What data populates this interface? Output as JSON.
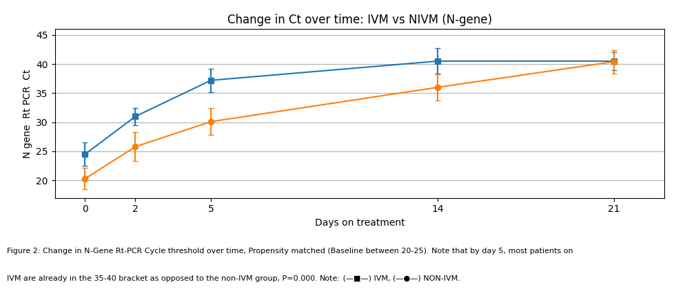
{
  "chart_data": {
    "type": "line",
    "title": "Change in Ct over time: IVM vs NIVM (N-gene)",
    "x_label": "Days on treatment",
    "y_label": "N gene  Rt PCR  Ct",
    "x": [
      0,
      2,
      5,
      14,
      21
    ],
    "series": [
      {
        "values": [
          24.5,
          31.0,
          37.2,
          40.5,
          40.5
        ],
        "errors": [
          2.0,
          1.5,
          2.0,
          2.2,
          1.5
        ],
        "marker": "square",
        "line_style": "solid"
      },
      {
        "values": [
          20.3,
          25.8,
          30.1,
          36.0,
          40.4
        ],
        "errors": [
          1.8,
          2.5,
          2.3,
          2.2,
          2.0
        ],
        "marker": "circle",
        "line_style": "solid"
      }
    ],
    "xlim": [
      -1.2,
      23
    ],
    "xticks": [
      0,
      2,
      5,
      14,
      21
    ],
    "ylim": [
      17,
      46
    ],
    "yticks": [
      20,
      25,
      30,
      35,
      40,
      45
    ],
    "grid": true,
    "annotations": [
      "Figure 2: Change in N-Gene Rt-PCR Cycle threshold over time, Propensity matched (Baseline between 20-25). Note that by day 5, most patients on",
      "IVM are already in the 35-40 bracket as opposed to the non-IVM group, P=0.000. ",
      "Note:",
      " (—■—) IVM, (—●—) NON-IVM."
    ]
  }
}
